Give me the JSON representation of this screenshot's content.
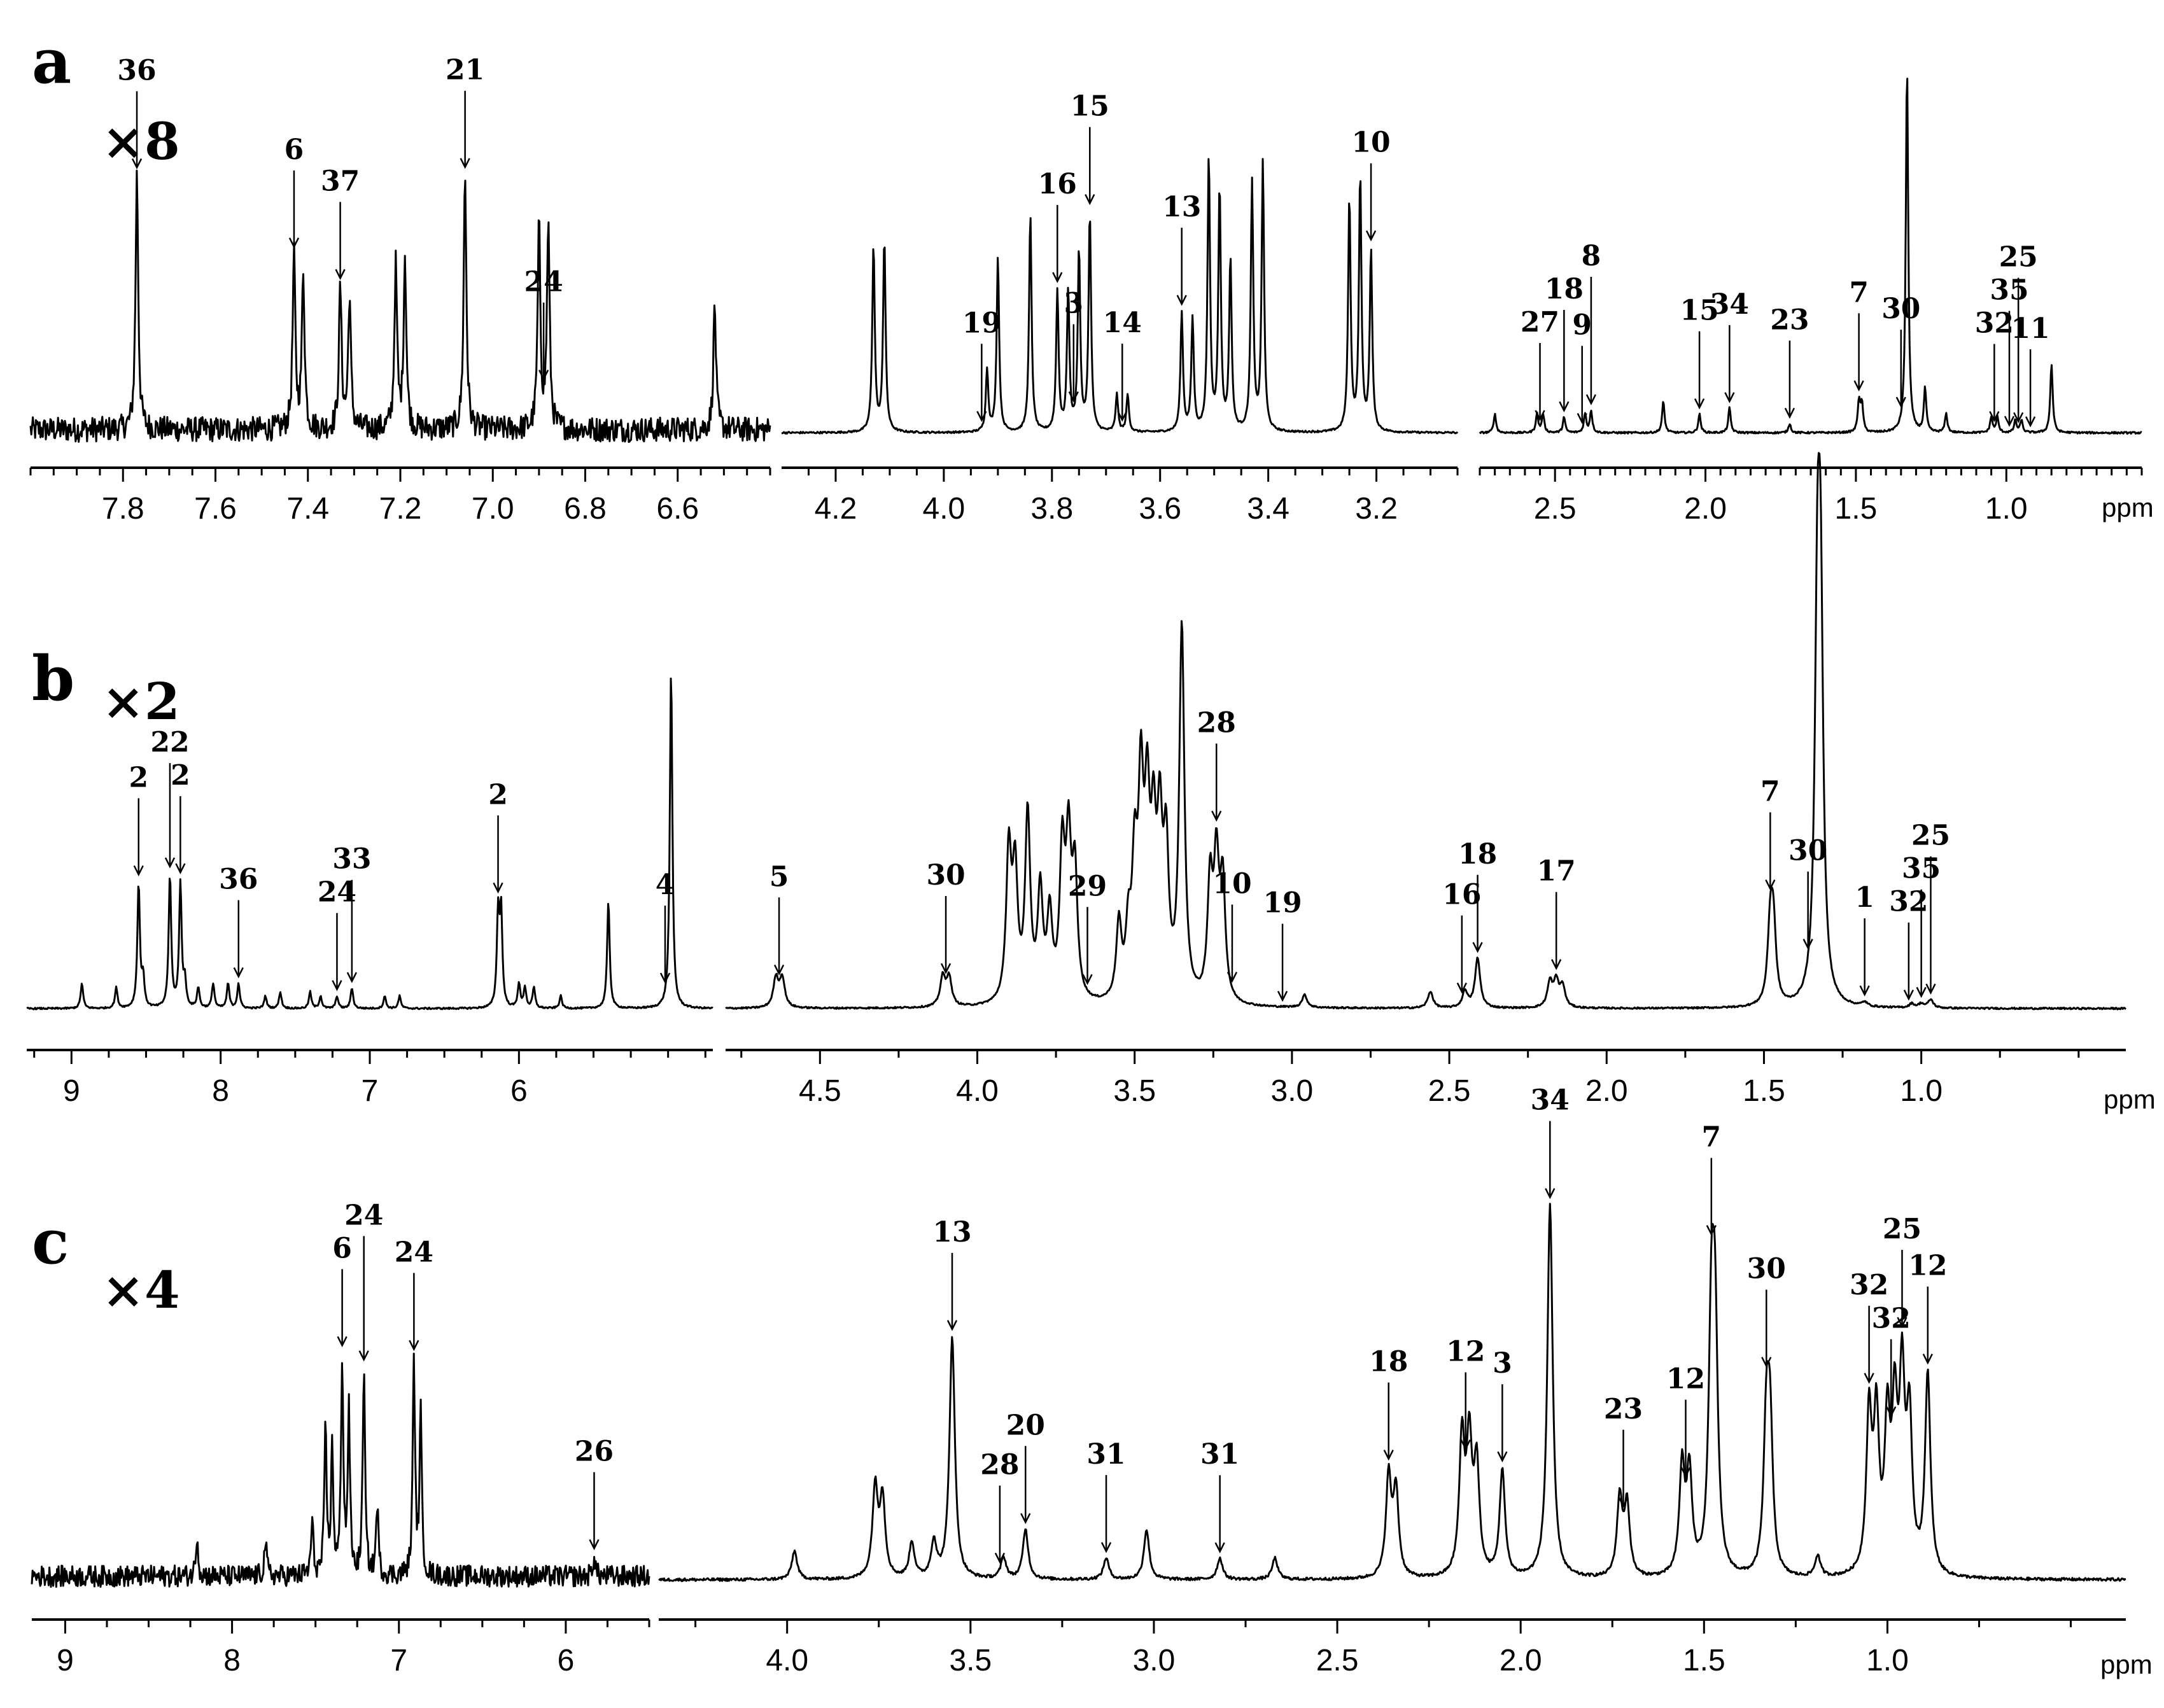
{
  "chart_data": [
    {
      "type": "line",
      "panel": "a",
      "multiplier": "×8",
      "unit": "ppm",
      "segments": [
        {
          "xlim": [
            8.0,
            6.4
          ],
          "ticks": [
            "7.8",
            "7.6",
            "7.4",
            "7.2",
            "7.0",
            "6.8",
            "6.6"
          ],
          "tick_values": [
            7.8,
            7.6,
            7.4,
            7.2,
            7.0,
            6.8,
            6.6
          ],
          "peaks": [
            [
              7.77,
              0.82
            ],
            [
              7.43,
              0.55
            ],
            [
              7.41,
              0.5
            ],
            [
              7.33,
              0.45
            ],
            [
              7.31,
              0.42
            ],
            [
              7.21,
              0.52
            ],
            [
              7.19,
              0.55
            ],
            [
              7.06,
              0.82
            ],
            [
              6.9,
              0.65
            ],
            [
              6.88,
              0.65
            ],
            [
              6.52,
              0.4
            ]
          ],
          "noise": 0.04,
          "baseline": 0.03
        },
        {
          "xlim": [
            4.3,
            3.05
          ],
          "ticks": [
            "4.2",
            "4.0",
            "3.8",
            "3.6",
            "3.4",
            "3.2"
          ],
          "tick_values": [
            4.2,
            4.0,
            3.8,
            3.6,
            3.4,
            3.2
          ],
          "peaks": [
            [
              4.13,
              0.6
            ],
            [
              4.11,
              0.62
            ],
            [
              3.92,
              0.2
            ],
            [
              3.9,
              0.56
            ],
            [
              3.84,
              0.7
            ],
            [
              3.79,
              0.45
            ],
            [
              3.77,
              0.45
            ],
            [
              3.75,
              0.58
            ],
            [
              3.73,
              0.7
            ],
            [
              3.68,
              0.12
            ],
            [
              3.66,
              0.12
            ],
            [
              3.56,
              0.38
            ],
            [
              3.54,
              0.36
            ],
            [
              3.51,
              0.88
            ],
            [
              3.49,
              0.78
            ],
            [
              3.47,
              0.55
            ],
            [
              3.43,
              0.8
            ],
            [
              3.41,
              0.86
            ],
            [
              3.25,
              0.75
            ],
            [
              3.23,
              0.82
            ],
            [
              3.21,
              0.58
            ]
          ],
          "noise": 0.003,
          "baseline": 0.02
        },
        {
          "xlim": [
            2.75,
            0.55
          ],
          "ticks": [
            "2.5",
            "2.0",
            "1.5",
            "1.0"
          ],
          "tick_values": [
            2.5,
            2.0,
            1.5,
            1.0
          ],
          "peaks": [
            [
              2.7,
              0.06
            ],
            [
              2.56,
              0.06
            ],
            [
              2.54,
              0.06
            ],
            [
              2.47,
              0.05
            ],
            [
              2.4,
              0.06
            ],
            [
              2.38,
              0.07
            ],
            [
              2.14,
              0.1
            ],
            [
              2.02,
              0.06
            ],
            [
              1.92,
              0.08
            ],
            [
              1.72,
              0.03
            ],
            [
              1.49,
              0.1
            ],
            [
              1.48,
              0.09
            ],
            [
              1.33,
              1.18
            ],
            [
              1.27,
              0.14
            ],
            [
              1.2,
              0.06
            ],
            [
              1.05,
              0.05
            ],
            [
              1.03,
              0.05
            ],
            [
              0.97,
              0.04
            ],
            [
              0.95,
              0.04
            ],
            [
              0.85,
              0.22
            ]
          ],
          "noise": 0.003,
          "baseline": 0.02
        }
      ],
      "annotations": [
        {
          "label": "36",
          "ppm": 7.77
        },
        {
          "label": "6",
          "ppm": 7.43
        },
        {
          "label": "37",
          "ppm": 7.33
        },
        {
          "label": "21",
          "ppm": 7.06
        },
        {
          "label": "24",
          "ppm": 6.89
        },
        {
          "label": "19",
          "ppm": 3.93
        },
        {
          "label": "16",
          "ppm": 3.79
        },
        {
          "label": "3",
          "ppm": 3.76
        },
        {
          "label": "15",
          "ppm": 3.73
        },
        {
          "label": "14",
          "ppm": 3.67
        },
        {
          "label": "13",
          "ppm": 3.56
        },
        {
          "label": "10",
          "ppm": 3.21
        },
        {
          "label": "27",
          "ppm": 2.55
        },
        {
          "label": "18",
          "ppm": 2.47
        },
        {
          "label": "9",
          "ppm": 2.41
        },
        {
          "label": "8",
          "ppm": 2.38
        },
        {
          "label": "15",
          "ppm": 2.02
        },
        {
          "label": "34",
          "ppm": 1.92
        },
        {
          "label": "23",
          "ppm": 1.72
        },
        {
          "label": "7",
          "ppm": 1.49
        },
        {
          "label": "30",
          "ppm": 1.35
        },
        {
          "label": "32",
          "ppm": 1.04
        },
        {
          "label": "35",
          "ppm": 0.99
        },
        {
          "label": "25",
          "ppm": 0.96
        },
        {
          "label": "11",
          "ppm": 0.92
        }
      ]
    },
    {
      "type": "line",
      "panel": "b",
      "multiplier": "×2",
      "unit": "ppm",
      "segments": [
        {
          "xlim": [
            9.3,
            4.7
          ],
          "ticks": [
            "9",
            "8",
            "7",
            "6"
          ],
          "tick_values": [
            9,
            8,
            7,
            6
          ],
          "peaks": [
            [
              8.93,
              0.06
            ],
            [
              8.7,
              0.05
            ],
            [
              8.55,
              0.3
            ],
            [
              8.52,
              0.07
            ],
            [
              8.34,
              0.32
            ],
            [
              8.27,
              0.3
            ],
            [
              8.24,
              0.06
            ],
            [
              8.15,
              0.05
            ],
            [
              8.05,
              0.06
            ],
            [
              7.95,
              0.06
            ],
            [
              7.88,
              0.06
            ],
            [
              7.7,
              0.03
            ],
            [
              7.6,
              0.04
            ],
            [
              7.4,
              0.04
            ],
            [
              7.33,
              0.03
            ],
            [
              7.22,
              0.03
            ],
            [
              7.12,
              0.05
            ],
            [
              6.9,
              0.03
            ],
            [
              6.8,
              0.03
            ],
            [
              6.14,
              0.22
            ],
            [
              6.12,
              0.23
            ],
            [
              6.0,
              0.06
            ],
            [
              5.96,
              0.05
            ],
            [
              5.9,
              0.05
            ],
            [
              5.72,
              0.03
            ],
            [
              5.4,
              0.26
            ],
            [
              4.98,
              0.82
            ]
          ],
          "noise": 0.002,
          "baseline": 0.02
        },
        {
          "xlim": [
            4.8,
            0.35
          ],
          "ticks": [
            "4.5",
            "4.0",
            "3.5",
            "3.0",
            "2.5",
            "2.0",
            "1.5",
            "1.0"
          ],
          "tick_values": [
            4.5,
            4.0,
            3.5,
            3.0,
            2.5,
            2.0,
            1.5,
            1.0
          ],
          "peaks": [
            [
              4.64,
              0.07
            ],
            [
              4.62,
              0.07
            ],
            [
              4.11,
              0.07
            ],
            [
              4.09,
              0.07
            ],
            [
              3.9,
              0.36
            ],
            [
              3.88,
              0.3
            ],
            [
              3.84,
              0.45
            ],
            [
              3.8,
              0.26
            ],
            [
              3.77,
              0.2
            ],
            [
              3.73,
              0.35
            ],
            [
              3.71,
              0.36
            ],
            [
              3.69,
              0.3
            ],
            [
              3.55,
              0.18
            ],
            [
              3.52,
              0.15
            ],
            [
              3.5,
              0.3
            ],
            [
              3.48,
              0.48
            ],
            [
              3.46,
              0.42
            ],
            [
              3.44,
              0.35
            ],
            [
              3.42,
              0.38
            ],
            [
              3.4,
              0.34
            ],
            [
              3.35,
              0.9
            ],
            [
              3.26,
              0.28
            ],
            [
              3.24,
              0.32
            ],
            [
              3.22,
              0.28
            ],
            [
              2.96,
              0.03
            ],
            [
              2.56,
              0.04
            ],
            [
              2.45,
              0.04
            ],
            [
              2.41,
              0.12
            ],
            [
              2.18,
              0.06
            ],
            [
              2.16,
              0.06
            ],
            [
              2.14,
              0.05
            ],
            [
              1.48,
              0.18
            ],
            [
              1.47,
              0.18
            ],
            [
              1.33,
              0.85
            ],
            [
              1.32,
              0.85
            ],
            [
              1.18,
              0.01
            ],
            [
              1.03,
              0.01
            ],
            [
              1.0,
              0.01
            ],
            [
              0.97,
              0.02
            ]
          ],
          "noise": 0.002,
          "baseline": 0.02
        }
      ],
      "annotations": [
        {
          "label": "2",
          "ppm": 8.55
        },
        {
          "label": "2",
          "ppm": 8.27
        },
        {
          "label": "22",
          "ppm": 8.34
        },
        {
          "label": "36",
          "ppm": 7.88
        },
        {
          "label": "24",
          "ppm": 7.22
        },
        {
          "label": "33",
          "ppm": 7.12
        },
        {
          "label": "2",
          "ppm": 6.14
        },
        {
          "label": "4",
          "ppm": 5.02
        },
        {
          "label": "5",
          "ppm": 4.63
        },
        {
          "label": "30",
          "ppm": 4.1
        },
        {
          "label": "29",
          "ppm": 3.65
        },
        {
          "label": "28",
          "ppm": 3.24
        },
        {
          "label": "10",
          "ppm": 3.19
        },
        {
          "label": "19",
          "ppm": 3.03
        },
        {
          "label": "16",
          "ppm": 2.46
        },
        {
          "label": "18",
          "ppm": 2.41
        },
        {
          "label": "17",
          "ppm": 2.16
        },
        {
          "label": "7",
          "ppm": 1.48
        },
        {
          "label": "30",
          "ppm": 1.36
        },
        {
          "label": "1",
          "ppm": 1.18
        },
        {
          "label": "32",
          "ppm": 1.04
        },
        {
          "label": "35",
          "ppm": 1.0
        },
        {
          "label": "25",
          "ppm": 0.97
        }
      ]
    },
    {
      "type": "line",
      "panel": "c",
      "multiplier": "×4",
      "unit": "ppm",
      "segments": [
        {
          "xlim": [
            9.2,
            5.5
          ],
          "ticks": [
            "9",
            "8",
            "7",
            "6"
          ],
          "tick_values": [
            9,
            8,
            7,
            6
          ],
          "peaks": [
            [
              8.21,
              0.12
            ],
            [
              7.8,
              0.1
            ],
            [
              7.52,
              0.15
            ],
            [
              7.44,
              0.4
            ],
            [
              7.4,
              0.35
            ],
            [
              7.34,
              0.6
            ],
            [
              7.3,
              0.45
            ],
            [
              7.21,
              0.58
            ],
            [
              7.13,
              0.2
            ],
            [
              6.91,
              0.6
            ],
            [
              6.87,
              0.45
            ],
            [
              5.83,
              0.06
            ]
          ],
          "noise": 0.03,
          "baseline": 0.05
        },
        {
          "xlim": [
            4.35,
            0.35
          ],
          "ticks": [
            "4.0",
            "3.5",
            "3.0",
            "2.5",
            "2.0",
            "1.5",
            "1.0"
          ],
          "tick_values": [
            4.0,
            3.5,
            3.0,
            2.5,
            2.0,
            1.5,
            1.0
          ],
          "peaks": [
            [
              3.98,
              0.08
            ],
            [
              3.76,
              0.25
            ],
            [
              3.74,
              0.22
            ],
            [
              3.66,
              0.1
            ],
            [
              3.6,
              0.1
            ],
            [
              3.55,
              0.68
            ],
            [
              3.41,
              0.06
            ],
            [
              3.35,
              0.14
            ],
            [
              3.13,
              0.06
            ],
            [
              3.02,
              0.14
            ],
            [
              2.82,
              0.06
            ],
            [
              2.67,
              0.06
            ],
            [
              2.36,
              0.28
            ],
            [
              2.34,
              0.24
            ],
            [
              2.16,
              0.38
            ],
            [
              2.14,
              0.36
            ],
            [
              2.12,
              0.3
            ],
            [
              2.05,
              0.3
            ],
            [
              1.92,
              1.05
            ],
            [
              1.73,
              0.22
            ],
            [
              1.71,
              0.2
            ],
            [
              1.56,
              0.3
            ],
            [
              1.54,
              0.28
            ],
            [
              1.48,
              0.66
            ],
            [
              1.47,
              0.64
            ],
            [
              1.33,
              0.4
            ],
            [
              1.32,
              0.4
            ],
            [
              1.19,
              0.06
            ],
            [
              1.05,
              0.44
            ],
            [
              1.03,
              0.42
            ],
            [
              1.0,
              0.4
            ],
            [
              0.98,
              0.42
            ],
            [
              0.96,
              0.52
            ],
            [
              0.94,
              0.42
            ],
            [
              0.89,
              0.56
            ]
          ],
          "noise": 0.004,
          "baseline": 0.04
        }
      ],
      "annotations": [
        {
          "label": "6",
          "ppm": 7.34
        },
        {
          "label": "24",
          "ppm": 7.21
        },
        {
          "label": "24",
          "ppm": 6.91
        },
        {
          "label": "26",
          "ppm": 5.83
        },
        {
          "label": "13",
          "ppm": 3.55
        },
        {
          "label": "28",
          "ppm": 3.42
        },
        {
          "label": "20",
          "ppm": 3.35
        },
        {
          "label": "31",
          "ppm": 3.13
        },
        {
          "label": "31",
          "ppm": 2.82
        },
        {
          "label": "18",
          "ppm": 2.36
        },
        {
          "label": "12",
          "ppm": 2.15
        },
        {
          "label": "3",
          "ppm": 2.05
        },
        {
          "label": "34",
          "ppm": 1.92
        },
        {
          "label": "23",
          "ppm": 1.72
        },
        {
          "label": "12",
          "ppm": 1.55
        },
        {
          "label": "7",
          "ppm": 1.48
        },
        {
          "label": "30",
          "ppm": 1.33
        },
        {
          "label": "32",
          "ppm": 1.05
        },
        {
          "label": "32",
          "ppm": 0.99
        },
        {
          "label": "25",
          "ppm": 0.96
        },
        {
          "label": "12",
          "ppm": 0.89
        }
      ]
    }
  ]
}
